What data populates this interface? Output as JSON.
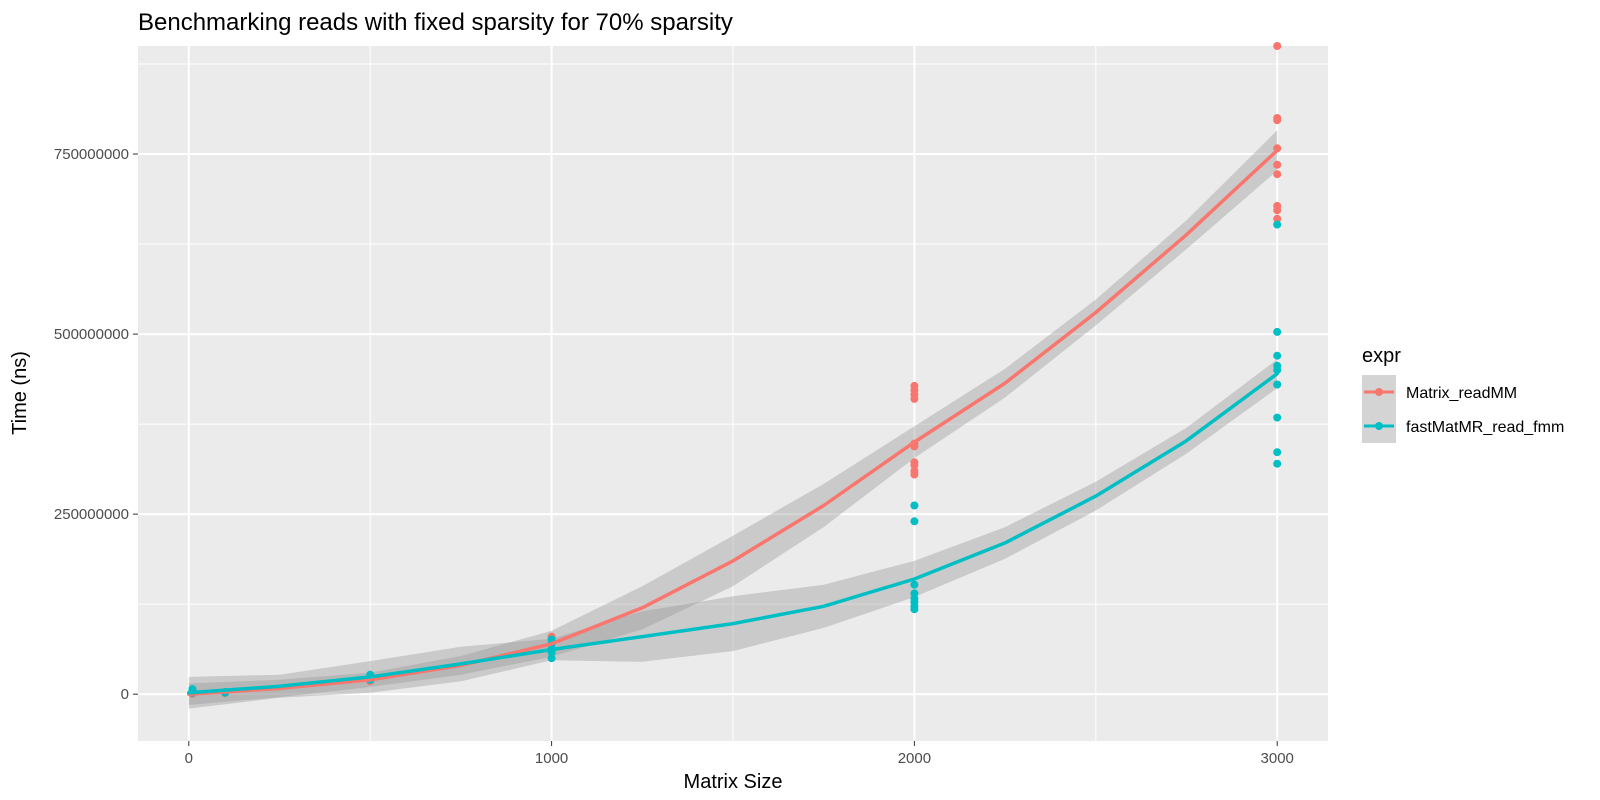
{
  "chart_data": {
    "type": "scatter",
    "title": "Benchmarking reads with fixed sparsity for 70% sparsity",
    "xlabel": "Matrix Size",
    "ylabel": "Time (ns)",
    "xlim": [
      -140,
      3140
    ],
    "ylim": [
      -65000000,
      900000000
    ],
    "x_ticks": [
      0,
      1000,
      2000,
      3000
    ],
    "x_tick_labels": [
      "0",
      "1000",
      "2000",
      "3000"
    ],
    "y_ticks": [
      0,
      250000000,
      500000000,
      750000000
    ],
    "y_tick_labels": [
      "0",
      "250000000",
      "500000000",
      "750000000"
    ],
    "grid": true,
    "legend_title": "expr",
    "legend_position": "right",
    "series": [
      {
        "name": "Matrix_readMM",
        "color": "#F8766D",
        "points": [
          [
            10,
            500000
          ],
          [
            10,
            1000000
          ],
          [
            10,
            1500000
          ],
          [
            100,
            1500000
          ],
          [
            100,
            2500000
          ],
          [
            500,
            18000000
          ],
          [
            500,
            22000000
          ],
          [
            500,
            26000000
          ],
          [
            1000,
            62000000
          ],
          [
            1000,
            70000000
          ],
          [
            1000,
            76000000
          ],
          [
            1000,
            80000000
          ],
          [
            2000,
            428000000
          ],
          [
            2000,
            422000000
          ],
          [
            2000,
            416000000
          ],
          [
            2000,
            410000000
          ],
          [
            2000,
            348000000
          ],
          [
            2000,
            344000000
          ],
          [
            2000,
            322000000
          ],
          [
            2000,
            318000000
          ],
          [
            2000,
            310000000
          ],
          [
            2000,
            305000000
          ],
          [
            3000,
            900000000
          ],
          [
            3000,
            800000000
          ],
          [
            3000,
            797000000
          ],
          [
            3000,
            758000000
          ],
          [
            3000,
            735000000
          ],
          [
            3000,
            722000000
          ],
          [
            3000,
            678000000
          ],
          [
            3000,
            672000000
          ],
          [
            3000,
            660000000
          ]
        ],
        "smooth": [
          [
            0,
            0
          ],
          [
            250,
            8000000
          ],
          [
            500,
            20000000
          ],
          [
            750,
            40000000
          ],
          [
            1000,
            70000000
          ],
          [
            1250,
            120000000
          ],
          [
            1500,
            185000000
          ],
          [
            1750,
            262000000
          ],
          [
            2000,
            350000000
          ],
          [
            2250,
            432000000
          ],
          [
            2500,
            530000000
          ],
          [
            2750,
            638000000
          ],
          [
            3000,
            755000000
          ]
        ],
        "band_halfwidth": [
          15000000,
          12000000,
          10000000,
          13000000,
          18000000,
          30000000,
          35000000,
          30000000,
          22000000,
          20000000,
          18000000,
          20000000,
          28000000
        ]
      },
      {
        "name": "fastMatMR_read_fmm",
        "color": "#00BFC4",
        "points": [
          [
            10,
            2000000
          ],
          [
            10,
            5000000
          ],
          [
            10,
            7000000
          ],
          [
            100,
            2000000
          ],
          [
            100,
            3000000
          ],
          [
            500,
            20000000
          ],
          [
            500,
            24000000
          ],
          [
            500,
            27000000
          ],
          [
            1000,
            50000000
          ],
          [
            1000,
            58000000
          ],
          [
            1000,
            63000000
          ],
          [
            1000,
            70000000
          ],
          [
            1000,
            76000000
          ],
          [
            2000,
            262000000
          ],
          [
            2000,
            240000000
          ],
          [
            2000,
            152000000
          ],
          [
            2000,
            140000000
          ],
          [
            2000,
            133000000
          ],
          [
            2000,
            128000000
          ],
          [
            2000,
            122000000
          ],
          [
            2000,
            118000000
          ],
          [
            3000,
            652000000
          ],
          [
            3000,
            503000000
          ],
          [
            3000,
            470000000
          ],
          [
            3000,
            456000000
          ],
          [
            3000,
            450000000
          ],
          [
            3000,
            430000000
          ],
          [
            3000,
            384000000
          ],
          [
            3000,
            336000000
          ],
          [
            3000,
            320000000
          ]
        ],
        "smooth": [
          [
            0,
            2000000
          ],
          [
            250,
            11000000
          ],
          [
            500,
            24000000
          ],
          [
            750,
            42000000
          ],
          [
            1000,
            62000000
          ],
          [
            1250,
            80000000
          ],
          [
            1500,
            98000000
          ],
          [
            1750,
            122000000
          ],
          [
            2000,
            160000000
          ],
          [
            2250,
            210000000
          ],
          [
            2500,
            275000000
          ],
          [
            2750,
            352000000
          ],
          [
            3000,
            445000000
          ]
        ],
        "band_halfwidth": [
          22000000,
          16000000,
          22000000,
          24000000,
          15000000,
          35000000,
          38000000,
          30000000,
          25000000,
          22000000,
          20000000,
          18000000,
          20000000
        ]
      }
    ]
  },
  "colors": {
    "panel_background": "#EBEBEB",
    "grid_major": "#FFFFFF",
    "confidence_band": "#999999"
  }
}
